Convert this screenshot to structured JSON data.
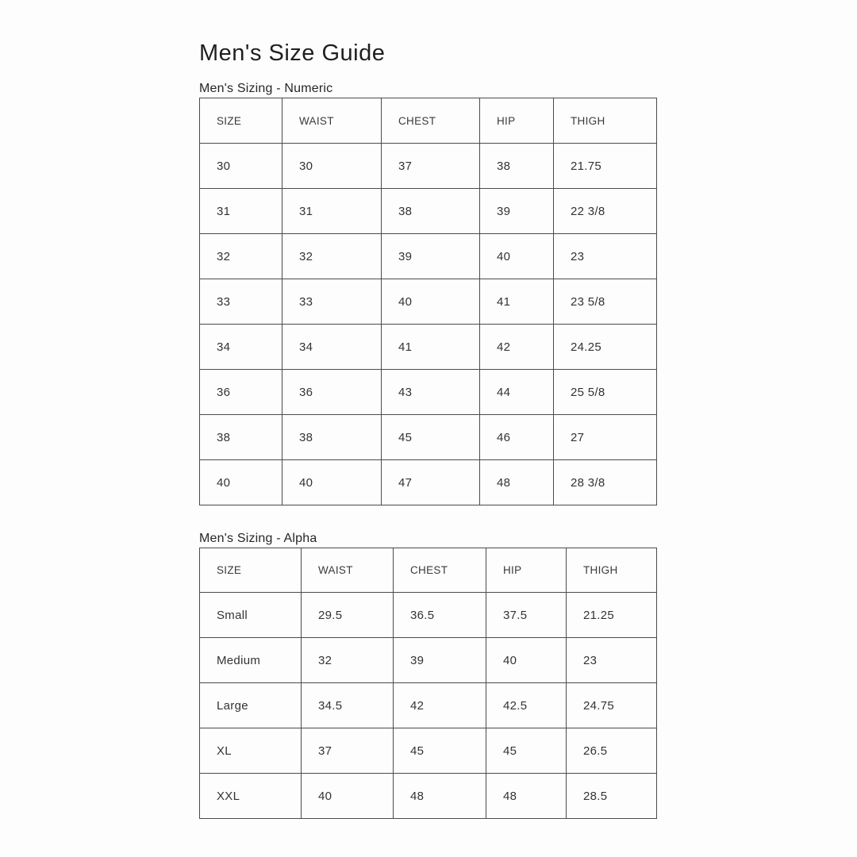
{
  "page": {
    "title": "Men's Size Guide"
  },
  "tables": [
    {
      "caption": "Men's Sizing - Numeric",
      "headers": [
        "SIZE",
        "WAIST",
        "CHEST",
        "HIP",
        "THIGH"
      ],
      "rows": [
        [
          "30",
          "30",
          "37",
          "38",
          "21.75"
        ],
        [
          "31",
          "31",
          "38",
          "39",
          "22 3/8"
        ],
        [
          "32",
          "32",
          "39",
          "40",
          "23"
        ],
        [
          "33",
          "33",
          "40",
          "41",
          "23 5/8"
        ],
        [
          "34",
          "34",
          "41",
          "42",
          "24.25"
        ],
        [
          "36",
          "36",
          "43",
          "44",
          "25 5/8"
        ],
        [
          "38",
          "38",
          "45",
          "46",
          "27"
        ],
        [
          "40",
          "40",
          "47",
          "48",
          "28 3/8"
        ]
      ]
    },
    {
      "caption": "Men's Sizing - Alpha",
      "headers": [
        "SIZE",
        "WAIST",
        "CHEST",
        "HIP",
        "THIGH"
      ],
      "rows": [
        [
          "Small",
          "29.5",
          "36.5",
          "37.5",
          "21.25"
        ],
        [
          "Medium",
          "32",
          "39",
          "40",
          "23"
        ],
        [
          "Large",
          "34.5",
          "42",
          "42.5",
          "24.75"
        ],
        [
          "XL",
          "37",
          "45",
          "45",
          "26.5"
        ],
        [
          "XXL",
          "40",
          "48",
          "48",
          "28.5"
        ]
      ]
    }
  ],
  "colors": {
    "background": "#fdfdfd",
    "text": "#2d2d2d",
    "border": "#4b4b4b"
  }
}
